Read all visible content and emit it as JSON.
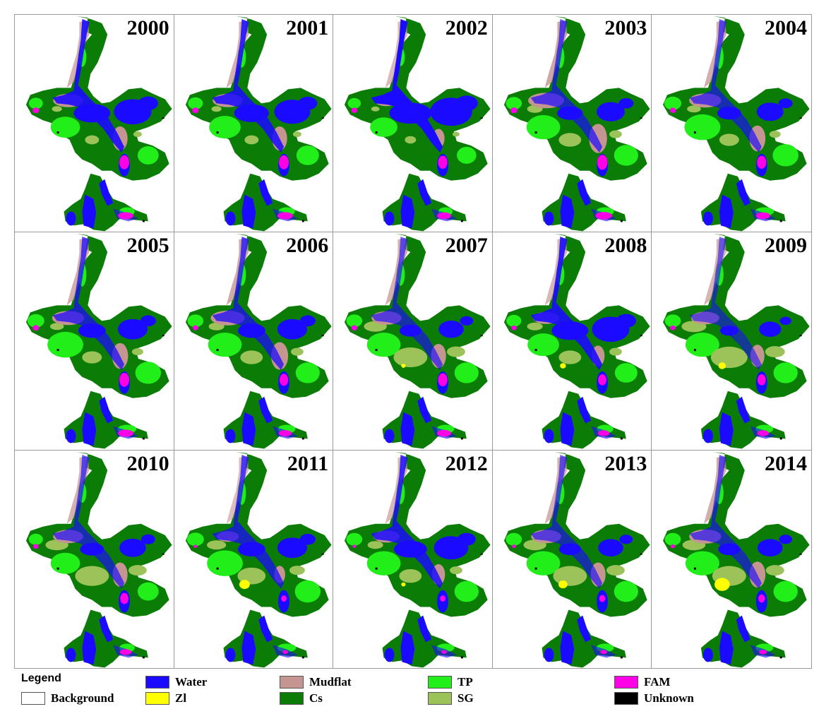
{
  "panels": [
    {
      "year": "2000",
      "water": 0.85,
      "mudflat": 0.55,
      "tp": 0.5,
      "cs": 0.6,
      "sg": 0.2,
      "fam": 0.5,
      "zl": 0.0
    },
    {
      "year": "2001",
      "water": 0.8,
      "mudflat": 0.55,
      "tp": 0.55,
      "cs": 0.65,
      "sg": 0.2,
      "fam": 0.5,
      "zl": 0.0
    },
    {
      "year": "2002",
      "water": 1.0,
      "mudflat": 0.4,
      "tp": 0.45,
      "cs": 0.55,
      "sg": 0.15,
      "fam": 0.45,
      "zl": 0.0
    },
    {
      "year": "2003",
      "water": 0.55,
      "mudflat": 0.7,
      "tp": 0.6,
      "cs": 0.65,
      "sg": 0.35,
      "fam": 0.55,
      "zl": 0.0
    },
    {
      "year": "2004",
      "water": 0.5,
      "mudflat": 0.6,
      "tp": 0.65,
      "cs": 0.7,
      "sg": 0.3,
      "fam": 0.45,
      "zl": 0.0
    },
    {
      "year": "2005",
      "water": 0.6,
      "mudflat": 0.6,
      "tp": 0.65,
      "cs": 0.7,
      "sg": 0.3,
      "fam": 0.5,
      "zl": 0.0
    },
    {
      "year": "2006",
      "water": 0.6,
      "mudflat": 0.65,
      "tp": 0.6,
      "cs": 0.7,
      "sg": 0.35,
      "fam": 0.4,
      "zl": 0.0
    },
    {
      "year": "2007",
      "water": 0.45,
      "mudflat": 0.55,
      "tp": 0.6,
      "cs": 0.7,
      "sg": 0.55,
      "fam": 0.45,
      "zl": 0.05
    },
    {
      "year": "2008",
      "water": 0.85,
      "mudflat": 0.45,
      "tp": 0.55,
      "cs": 0.65,
      "sg": 0.35,
      "fam": 0.35,
      "zl": 0.1
    },
    {
      "year": "2009",
      "water": 0.35,
      "mudflat": 0.5,
      "tp": 0.6,
      "cs": 0.7,
      "sg": 0.6,
      "fam": 0.35,
      "zl": 0.15
    },
    {
      "year": "2010",
      "water": 0.5,
      "mudflat": 0.55,
      "tp": 0.5,
      "cs": 0.65,
      "sg": 0.55,
      "fam": 0.35,
      "zl": 0.0
    },
    {
      "year": "2011",
      "water": 0.6,
      "mudflat": 0.35,
      "tp": 0.65,
      "cs": 0.75,
      "sg": 0.45,
      "fam": 0.1,
      "zl": 0.25
    },
    {
      "year": "2012",
      "water": 0.75,
      "mudflat": 0.45,
      "tp": 0.6,
      "cs": 0.7,
      "sg": 0.35,
      "fam": 0.1,
      "zl": 0.05
    },
    {
      "year": "2013",
      "water": 0.45,
      "mudflat": 0.55,
      "tp": 0.6,
      "cs": 0.75,
      "sg": 0.55,
      "fam": 0.15,
      "zl": 0.2
    },
    {
      "year": "2014",
      "water": 0.45,
      "mudflat": 0.6,
      "tp": 0.6,
      "cs": 0.7,
      "sg": 0.55,
      "fam": 0.2,
      "zl": 0.4
    }
  ],
  "legend": {
    "title": "Legend",
    "items": [
      {
        "label": "Background",
        "color": "#ffffff"
      },
      {
        "label": "Water",
        "color": "#1a0aff"
      },
      {
        "label": "Zl",
        "color": "#ffff00"
      },
      {
        "label": "Mudflat",
        "color": "#c59591"
      },
      {
        "label": "Cs",
        "color": "#0b7d07"
      },
      {
        "label": "TP",
        "color": "#22ee1a"
      },
      {
        "label": "SG",
        "color": "#9cc35a"
      },
      {
        "label": "FAM",
        "color": "#ff00e6"
      },
      {
        "label": "Unknown",
        "color": "#000000"
      }
    ]
  }
}
